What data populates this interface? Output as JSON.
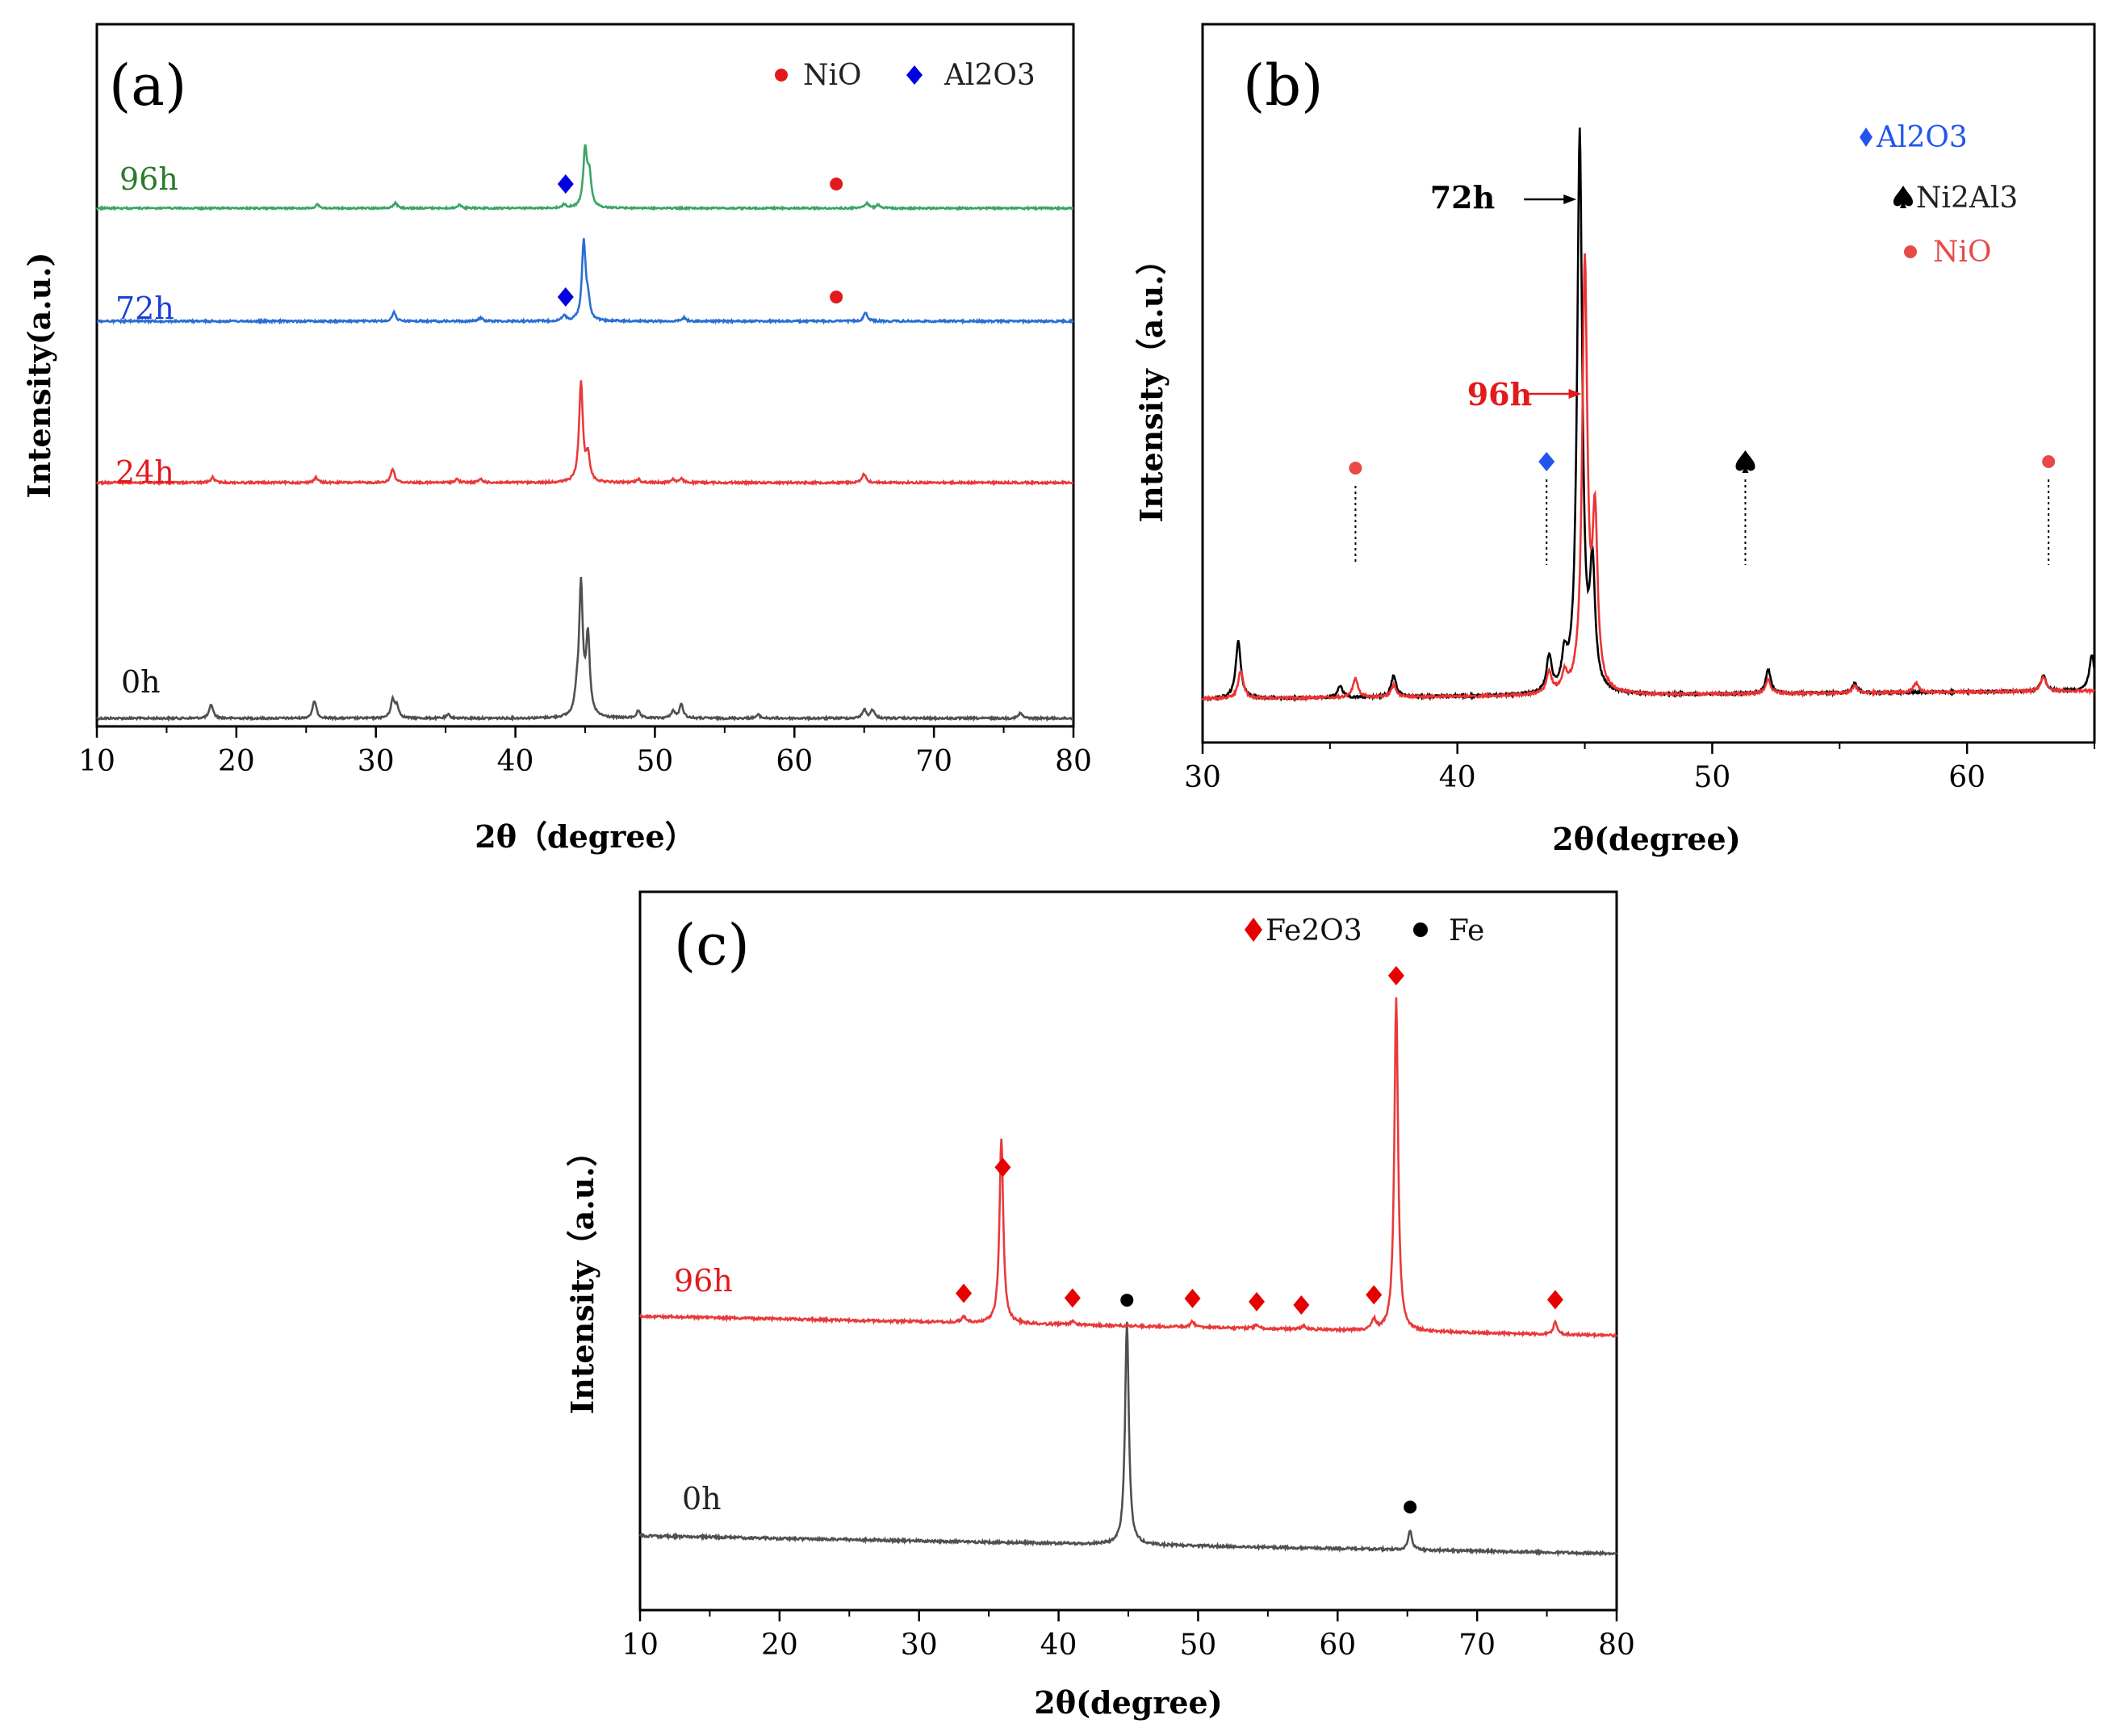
{
  "chart_data": [
    {
      "panel": "(a)",
      "type": "line",
      "xlabel": "2θ（degree）",
      "ylabel": "Intensity(a.u.)",
      "xlim": [
        10,
        80
      ],
      "xticks": [
        10,
        20,
        30,
        40,
        50,
        60,
        70,
        80
      ],
      "legend": [
        {
          "label": "NiO",
          "marker": "circle",
          "color": "#e31a1c"
        },
        {
          "label": "Al2O3",
          "marker": "diamond",
          "color": "#0000e0"
        }
      ],
      "series": [
        {
          "name": "0h",
          "color": "#505050",
          "offset": 0,
          "noise": 0.6,
          "peaks": [
            [
              18.2,
              8
            ],
            [
              25.6,
              10
            ],
            [
              31.2,
              10
            ],
            [
              31.5,
              7
            ],
            [
              35.2,
              2
            ],
            [
              44.4,
              10
            ],
            [
              44.7,
              75
            ],
            [
              45.2,
              45
            ],
            [
              48.8,
              4
            ],
            [
              51.3,
              4
            ],
            [
              51.9,
              8
            ],
            [
              57.4,
              2
            ],
            [
              65.0,
              5
            ],
            [
              65.6,
              5
            ],
            [
              76.2,
              3
            ]
          ]
        },
        {
          "name": "24h",
          "color": "#e83a3a",
          "offset": 85,
          "noise": 0.6,
          "peaks": [
            [
              18.3,
              3
            ],
            [
              25.7,
              3
            ],
            [
              31.2,
              8
            ],
            [
              35.8,
              2
            ],
            [
              37.5,
              2
            ],
            [
              44.7,
              58
            ],
            [
              45.2,
              15
            ],
            [
              48.8,
              2
            ],
            [
              51.3,
              2
            ],
            [
              51.9,
              2
            ],
            [
              65.0,
              5
            ]
          ]
        },
        {
          "name": "72h",
          "color": "#2a6fd1",
          "offset": 155,
          "noise": 0.6,
          "peaks": [
            [
              31.3,
              5
            ],
            [
              37.5,
              2
            ],
            [
              43.5,
              3
            ],
            [
              44.9,
              45
            ],
            [
              45.2,
              10
            ],
            [
              52.1,
              2
            ],
            [
              65.1,
              5
            ]
          ]
        },
        {
          "name": "96h",
          "color": "#3aa567",
          "offset": 210,
          "noise": 0.5,
          "peaks": [
            [
              25.8,
              2
            ],
            [
              31.4,
              3
            ],
            [
              36.0,
              2
            ],
            [
              43.5,
              2
            ],
            [
              45.0,
              33
            ],
            [
              45.3,
              18
            ],
            [
              65.2,
              3
            ],
            [
              66.0,
              2
            ]
          ]
        }
      ],
      "markers": [
        {
          "series": "96h",
          "x": 43.6,
          "kind": "Al2O3"
        },
        {
          "series": "96h",
          "x": 63.0,
          "kind": "NiO"
        },
        {
          "series": "72h",
          "x": 43.6,
          "kind": "Al2O3"
        },
        {
          "series": "72h",
          "x": 63.0,
          "kind": "NiO"
        }
      ]
    },
    {
      "panel": "(b)",
      "type": "line",
      "xlabel": "2θ(degree)",
      "ylabel": "Intensity（a.u.）",
      "xlim": [
        30,
        65
      ],
      "xticks": [
        30,
        40,
        50,
        60
      ],
      "legend": [
        {
          "label": "Al2O3",
          "marker": "diamond",
          "color": "#2255ee"
        },
        {
          "label": "Ni2Al3",
          "marker": "spade",
          "color": "#000000"
        },
        {
          "label": "NiO",
          "marker": "circle",
          "color": "#e84a4a"
        }
      ],
      "series": [
        {
          "name": "72h",
          "color": "#000000",
          "arrow_x": 44.8,
          "arrow_y": 255,
          "peaks": [
            [
              31.4,
              24
            ],
            [
              35.4,
              5
            ],
            [
              37.5,
              9
            ],
            [
              43.6,
              15
            ],
            [
              44.2,
              13
            ],
            [
              44.8,
              235
            ],
            [
              45.3,
              50
            ],
            [
              52.2,
              10
            ],
            [
              55.6,
              4
            ],
            [
              63.0,
              7
            ],
            [
              64.9,
              15
            ]
          ]
        },
        {
          "name": "96h",
          "color": "#ee3333",
          "arrow_x": 45.0,
          "arrow_y": 138,
          "peaks": [
            [
              31.5,
              12
            ],
            [
              36.0,
              8
            ],
            [
              37.5,
              5
            ],
            [
              43.6,
              9
            ],
            [
              44.2,
              7
            ],
            [
              45.0,
              180
            ],
            [
              45.4,
              70
            ],
            [
              52.2,
              6
            ],
            [
              55.6,
              3
            ],
            [
              58.0,
              4
            ],
            [
              63.0,
              6
            ]
          ]
        }
      ],
      "markers": [
        {
          "x": 36.0,
          "kind": "NiO"
        },
        {
          "x": 43.5,
          "kind": "Al2O3"
        },
        {
          "x": 51.3,
          "kind": "Ni2Al3"
        },
        {
          "x": 63.2,
          "kind": "NiO"
        }
      ]
    },
    {
      "panel": "(c)",
      "type": "line",
      "xlabel": "2θ(degree)",
      "ylabel": "Intensity（a.u.）",
      "xlim": [
        10,
        80
      ],
      "xticks": [
        10,
        20,
        30,
        40,
        50,
        60,
        70,
        80
      ],
      "legend": [
        {
          "label": "Fe2O3",
          "marker": "diamond",
          "color": "#e60000"
        },
        {
          "label": "Fe",
          "marker": "circle",
          "color": "#000000"
        }
      ],
      "series": [
        {
          "name": "0h",
          "color": "#505050",
          "offset": 0,
          "slope": 10,
          "peaks": [
            [
              44.9,
              110
            ],
            [
              65.2,
              10
            ]
          ]
        },
        {
          "name": "96h",
          "color": "#e83a3a",
          "offset": 100,
          "slope": 11,
          "peaks": [
            [
              33.2,
              3
            ],
            [
              35.9,
              92
            ],
            [
              41.0,
              2
            ],
            [
              49.6,
              3
            ],
            [
              54.2,
              2
            ],
            [
              57.6,
              2
            ],
            [
              62.6,
              5
            ],
            [
              64.2,
              165
            ],
            [
              75.6,
              6
            ]
          ]
        }
      ],
      "markers": [
        {
          "series": "96h",
          "x": 33.2,
          "kind": "Fe2O3"
        },
        {
          "series": "96h",
          "x": 36.0,
          "kind": "Fe2O3"
        },
        {
          "series": "96h",
          "x": 41.0,
          "kind": "Fe2O3"
        },
        {
          "series": "96h",
          "x": 49.6,
          "kind": "Fe2O3"
        },
        {
          "series": "96h",
          "x": 54.2,
          "kind": "Fe2O3"
        },
        {
          "series": "96h",
          "x": 57.4,
          "kind": "Fe2O3"
        },
        {
          "series": "96h",
          "x": 62.6,
          "kind": "Fe2O3"
        },
        {
          "series": "96h",
          "x": 64.2,
          "kind": "Fe2O3"
        },
        {
          "series": "96h",
          "x": 75.6,
          "kind": "Fe2O3"
        },
        {
          "series": "0h",
          "x": 44.9,
          "kind": "Fe"
        },
        {
          "series": "0h",
          "x": 65.2,
          "kind": "Fe"
        }
      ]
    }
  ]
}
